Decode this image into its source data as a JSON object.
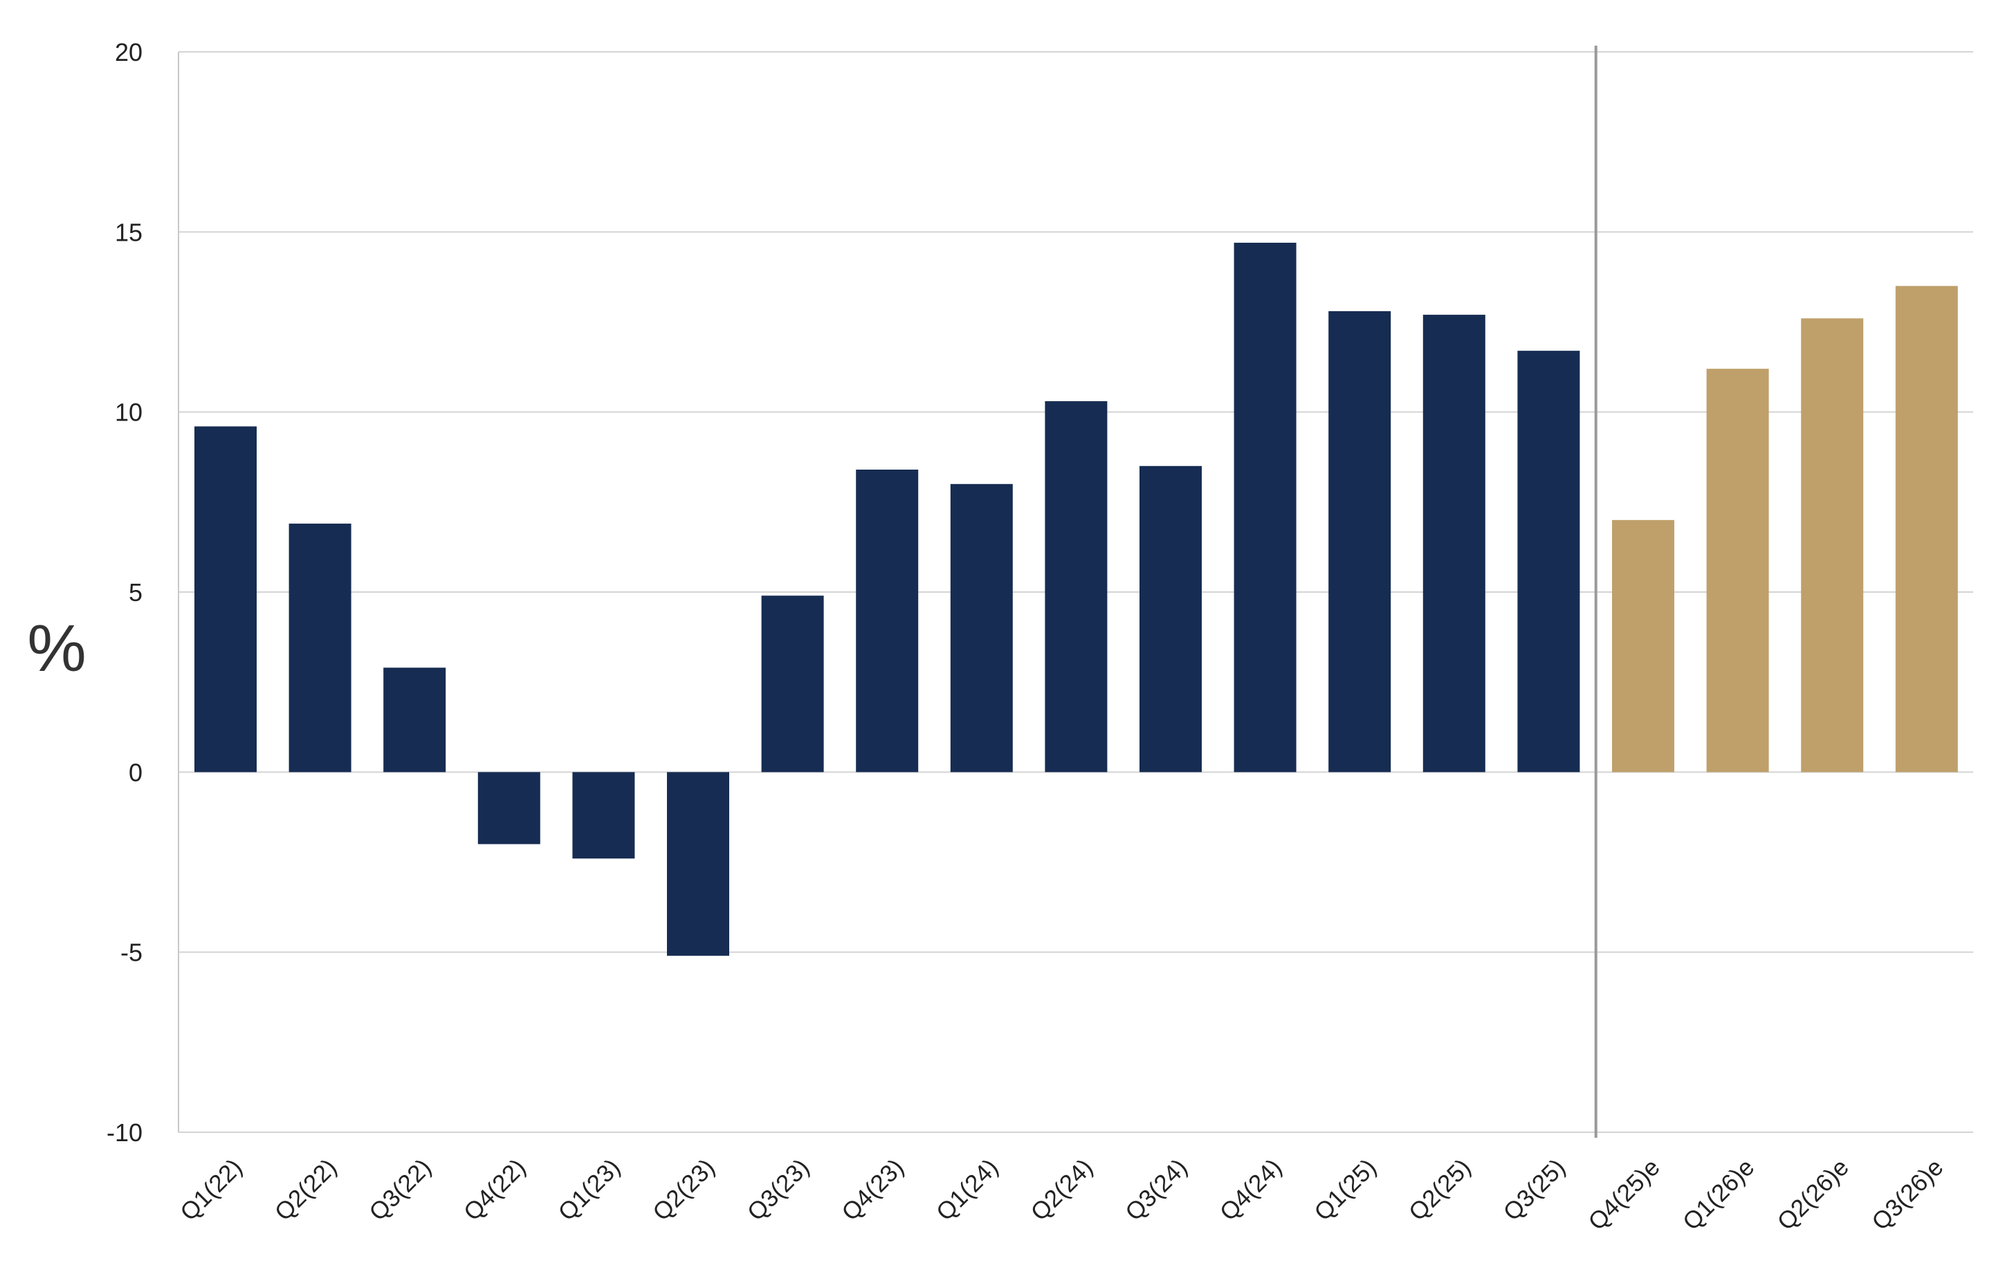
{
  "chart_data": {
    "type": "bar",
    "title": "",
    "xlabel": "",
    "ylabel": "%",
    "ylim": [
      -10,
      20
    ],
    "yticks": [
      -10,
      -5,
      0,
      5,
      10,
      15,
      20
    ],
    "grid": true,
    "categories": [
      "Q1(22)",
      "Q2(22)",
      "Q3(22)",
      "Q4(22)",
      "Q1(23)",
      "Q2(23)",
      "Q3(23)",
      "Q4(23)",
      "Q1(24)",
      "Q2(24)",
      "Q3(24)",
      "Q4(24)",
      "Q1(25)",
      "Q2(25)",
      "Q3(25)",
      "Q4(25)e",
      "Q1(26)e",
      "Q2(26)e",
      "Q3(26)e"
    ],
    "values": [
      9.6,
      6.9,
      2.9,
      -2.0,
      -2.4,
      -5.1,
      4.9,
      8.4,
      8.0,
      10.3,
      8.5,
      14.7,
      12.8,
      12.7,
      11.7,
      7.0,
      11.2,
      12.6,
      13.5
    ],
    "series_split": {
      "actual": {
        "from_index": 0,
        "to_index": 14,
        "color": "#162c52"
      },
      "estimate": {
        "from_index": 15,
        "to_index": 18,
        "color": "#bfa06b"
      }
    },
    "divider_after_index": 14
  }
}
